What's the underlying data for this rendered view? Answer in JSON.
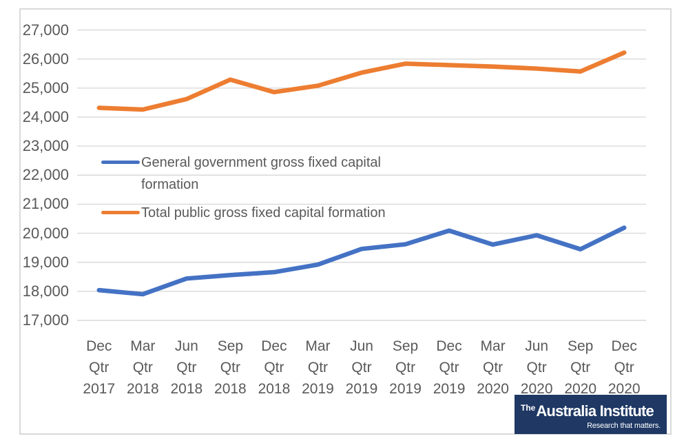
{
  "chart_data": {
    "type": "line",
    "title": "",
    "xlabel": "",
    "ylabel": "",
    "x_categories": [
      [
        "Dec",
        "Qtr",
        "2017"
      ],
      [
        "Mar",
        "Qtr",
        "2018"
      ],
      [
        "Jun",
        "Qtr",
        "2018"
      ],
      [
        "Sep",
        "Qtr",
        "2018"
      ],
      [
        "Dec",
        "Qtr",
        "2018"
      ],
      [
        "Mar",
        "Qtr",
        "2019"
      ],
      [
        "Jun",
        "Qtr",
        "2019"
      ],
      [
        "Sep",
        "Qtr",
        "2019"
      ],
      [
        "Dec",
        "Qtr",
        "2019"
      ],
      [
        "Mar",
        "Qtr",
        "2020"
      ],
      [
        "Jun",
        "Qtr",
        "2020"
      ],
      [
        "Sep",
        "Qtr",
        "2020"
      ],
      [
        "Dec",
        "Qtr",
        "2020"
      ]
    ],
    "series": [
      {
        "name": "General government gross fixed capital formation",
        "color": "#4472C4",
        "values": [
          18040,
          17900,
          18440,
          18560,
          18660,
          18920,
          19460,
          19620,
          20090,
          19610,
          19930,
          19450,
          20190
        ]
      },
      {
        "name": "Total public gross fixed capital formation",
        "color": "#ED7D31",
        "values": [
          24320,
          24260,
          24620,
          25290,
          24860,
          25080,
          25530,
          25840,
          25790,
          25740,
          25670,
          25570,
          26220
        ]
      }
    ],
    "ylim": [
      17000,
      27000
    ],
    "ytick_step": 1000,
    "ytick_labels": [
      "27,000",
      "26,000",
      "25,000",
      "24,000",
      "23,000",
      "22,000",
      "21,000",
      "20,000",
      "19,000",
      "18,000",
      "17,000"
    ],
    "grid": true,
    "legend_position": "inside-top-left",
    "axis_text_color": "#595959",
    "gridline_color": "#D9D9D9"
  },
  "branding": {
    "prefix": "The",
    "name": "Australia Institute",
    "tagline": "Research that matters.",
    "background": "#1F3864",
    "text_color": "#FFFFFF"
  }
}
